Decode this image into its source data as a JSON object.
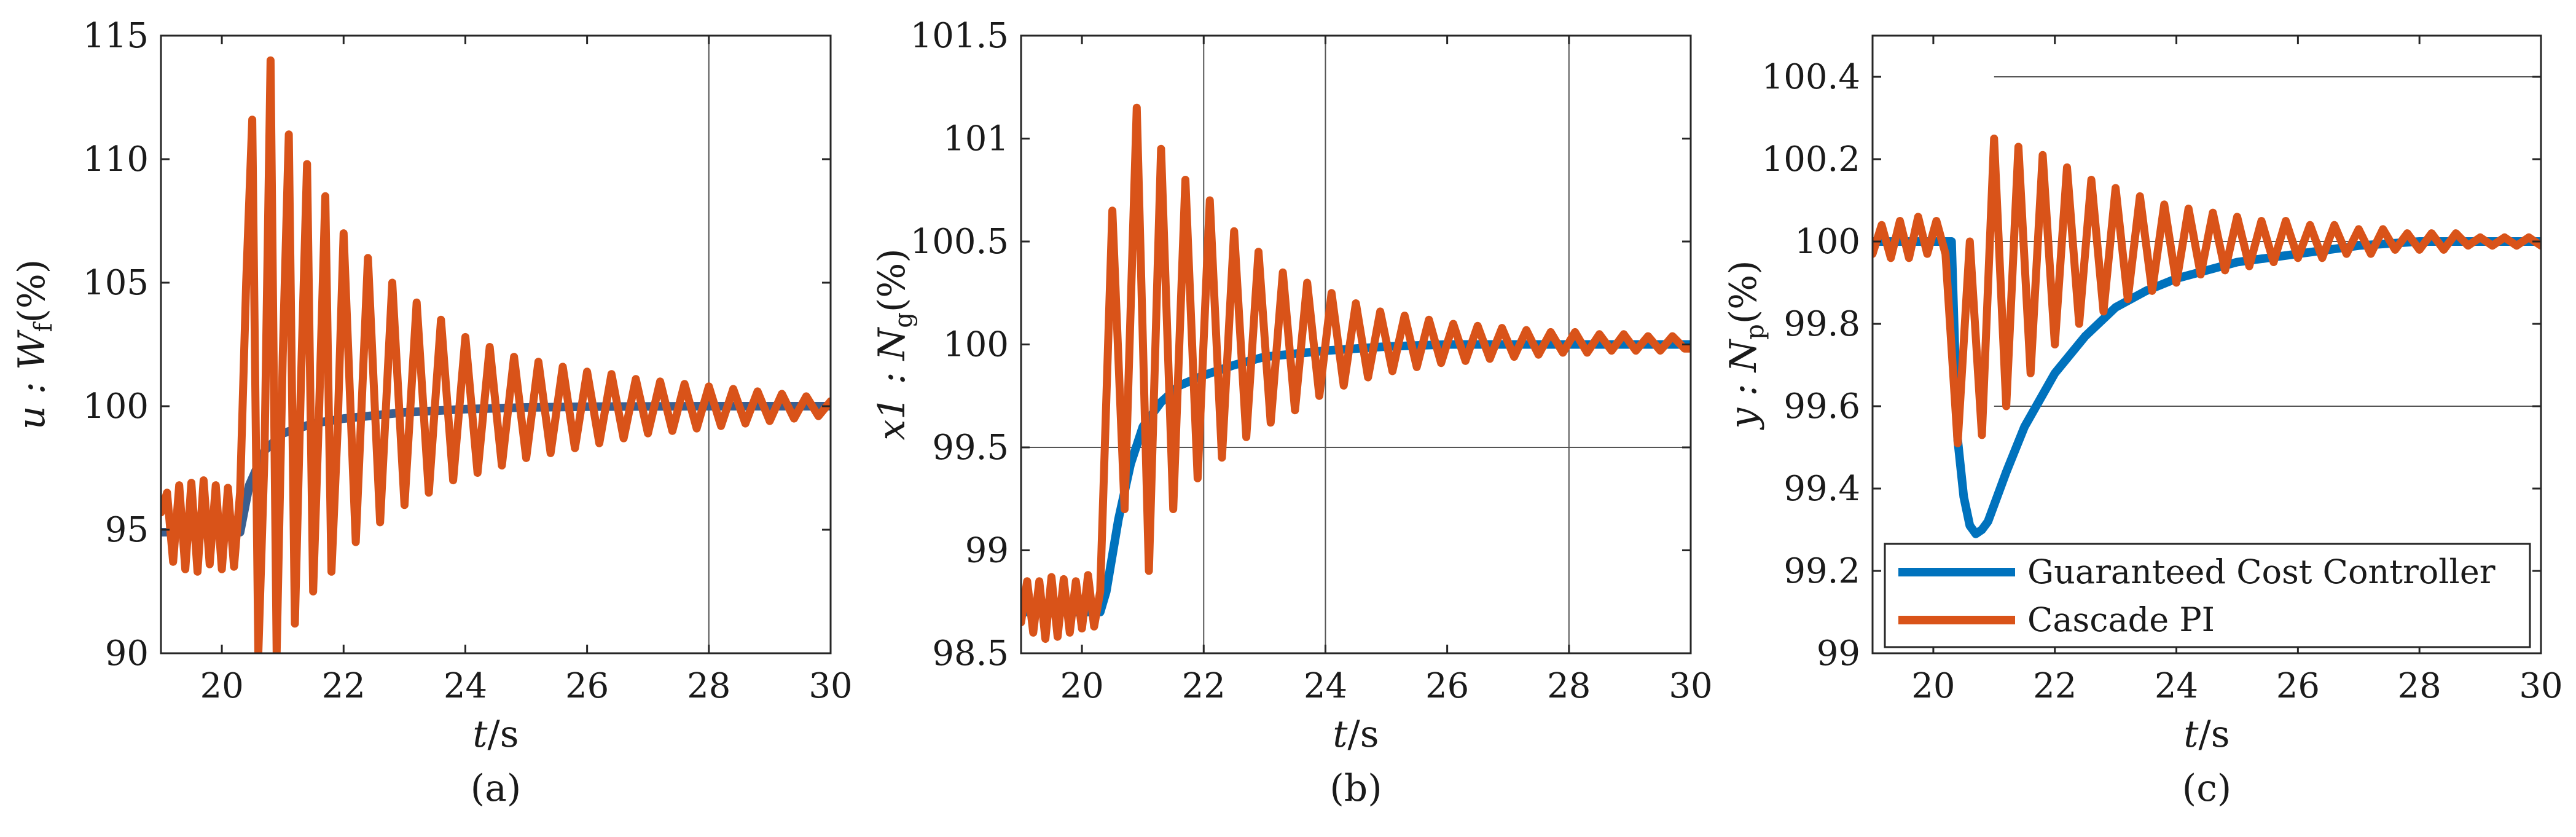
{
  "legend": {
    "entries": [
      {
        "label": "Guaranteed Cost Controller",
        "color": "#0072BD"
      },
      {
        "label": "Cascade PI",
        "color": "#D95319"
      }
    ]
  },
  "chart_data": [
    {
      "type": "line",
      "caption": "(a)",
      "ylabel": "u : W",
      "ylabel_sub": "f",
      "ylabel_unit": "(%)",
      "xlabel": "t",
      "xlabel_unit": "/s",
      "xlim": [
        19,
        30
      ],
      "ylim": [
        90,
        115
      ],
      "xticks": [
        20,
        22,
        24,
        26,
        28,
        30
      ],
      "yticks": [
        90,
        95,
        100,
        105,
        110,
        115
      ],
      "grid_x": [
        28
      ],
      "grid_y": [],
      "series": [
        {
          "name": "Guaranteed Cost Controller",
          "color": "#3a5f8f",
          "x": [
            19.0,
            20.3,
            20.45,
            20.7,
            21.0,
            21.5,
            22.0,
            23.0,
            24.0,
            25.0,
            26.0,
            28.0,
            30.0
          ],
          "y": [
            94.9,
            94.9,
            96.8,
            98.2,
            98.9,
            99.3,
            99.5,
            99.75,
            99.88,
            99.95,
            99.98,
            100.0,
            100.0
          ]
        },
        {
          "name": "Cascade PI",
          "color": "#D95319",
          "x": [
            19.0,
            19.1,
            19.2,
            19.3,
            19.4,
            19.5,
            19.6,
            19.7,
            19.8,
            19.9,
            20.0,
            20.1,
            20.2,
            20.3,
            20.4,
            20.5,
            20.6,
            20.7,
            20.8,
            20.9,
            21.0,
            21.1,
            21.2,
            21.3,
            21.4,
            21.5,
            21.6,
            21.7,
            21.8,
            21.9,
            22.0,
            22.2,
            22.4,
            22.6,
            22.8,
            23.0,
            23.2,
            23.4,
            23.6,
            23.8,
            24.0,
            24.2,
            24.4,
            24.6,
            24.8,
            25.0,
            25.2,
            25.4,
            25.6,
            25.8,
            26.0,
            26.2,
            26.4,
            26.6,
            26.8,
            27.0,
            27.2,
            27.4,
            27.6,
            27.8,
            28.0,
            28.2,
            28.4,
            28.6,
            28.8,
            29.0,
            29.2,
            29.4,
            29.6,
            29.8,
            30.0
          ],
          "y": [
            95.7,
            96.5,
            93.7,
            96.8,
            93.4,
            96.9,
            93.3,
            97.0,
            93.6,
            96.8,
            93.4,
            96.7,
            93.5,
            96.5,
            105.0,
            111.6,
            90.0,
            98.0,
            114.0,
            90.0,
            102.0,
            111.0,
            91.2,
            101.0,
            109.8,
            92.5,
            100.0,
            108.5,
            93.3,
            99.0,
            107.0,
            94.5,
            106.0,
            95.3,
            105.0,
            96.0,
            104.2,
            96.5,
            103.5,
            97.0,
            102.8,
            97.3,
            102.4,
            97.6,
            102.0,
            97.9,
            101.8,
            98.1,
            101.6,
            98.3,
            101.4,
            98.5,
            101.3,
            98.7,
            101.1,
            98.9,
            101.0,
            99.0,
            100.9,
            99.1,
            100.8,
            99.2,
            100.7,
            99.3,
            100.6,
            99.4,
            100.5,
            99.5,
            100.4,
            99.6,
            100.2
          ]
        }
      ]
    },
    {
      "type": "line",
      "caption": "(b)",
      "ylabel": "x1 : N",
      "ylabel_sub": "g",
      "ylabel_unit": "(%)",
      "xlabel": "t",
      "xlabel_unit": "/s",
      "xlim": [
        19,
        30
      ],
      "ylim": [
        98.5,
        101.5
      ],
      "xticks": [
        20,
        22,
        24,
        26,
        28,
        30
      ],
      "yticks": [
        98.5,
        99,
        99.5,
        100,
        100.5,
        101,
        101.5
      ],
      "grid_x": [
        22,
        24,
        28
      ],
      "grid_y": [
        99.5
      ],
      "series": [
        {
          "name": "Guaranteed Cost Controller",
          "color": "#0072BD",
          "x": [
            19.0,
            20.3,
            20.4,
            20.6,
            20.8,
            21.0,
            21.3,
            21.6,
            22.0,
            22.5,
            23.0,
            24.0,
            25.0,
            26.0,
            28.0,
            30.0
          ],
          "y": [
            98.7,
            98.7,
            98.8,
            99.15,
            99.42,
            99.6,
            99.72,
            99.8,
            99.85,
            99.9,
            99.94,
            99.97,
            99.99,
            100.0,
            100.0,
            100.0
          ]
        },
        {
          "name": "Cascade PI",
          "color": "#D95319",
          "x": [
            19.0,
            19.1,
            19.2,
            19.3,
            19.4,
            19.5,
            19.6,
            19.7,
            19.8,
            19.9,
            20.0,
            20.1,
            20.2,
            20.3,
            20.5,
            20.7,
            20.9,
            21.1,
            21.3,
            21.5,
            21.7,
            21.9,
            22.1,
            22.3,
            22.5,
            22.7,
            22.9,
            23.1,
            23.3,
            23.5,
            23.7,
            23.9,
            24.1,
            24.3,
            24.5,
            24.7,
            24.9,
            25.1,
            25.3,
            25.5,
            25.7,
            25.9,
            26.1,
            26.3,
            26.5,
            26.7,
            26.9,
            27.1,
            27.3,
            27.5,
            27.7,
            27.9,
            28.1,
            28.3,
            28.5,
            28.7,
            28.9,
            29.1,
            29.3,
            29.5,
            29.7,
            29.9,
            30.0
          ],
          "y": [
            98.65,
            98.85,
            98.6,
            98.85,
            98.57,
            98.87,
            98.58,
            98.86,
            98.6,
            98.85,
            98.62,
            98.88,
            98.63,
            98.8,
            100.65,
            99.2,
            101.15,
            98.9,
            100.95,
            99.2,
            100.8,
            99.35,
            100.7,
            99.45,
            100.55,
            99.55,
            100.45,
            99.62,
            100.35,
            99.68,
            100.3,
            99.75,
            100.25,
            99.8,
            100.2,
            99.84,
            100.16,
            99.87,
            100.14,
            99.89,
            100.12,
            99.91,
            100.1,
            99.92,
            100.09,
            99.93,
            100.08,
            99.94,
            100.07,
            99.95,
            100.06,
            99.96,
            100.06,
            99.96,
            100.05,
            99.97,
            100.05,
            99.97,
            100.04,
            99.97,
            100.04,
            99.98,
            99.98
          ]
        }
      ]
    },
    {
      "type": "line",
      "caption": "(c)",
      "ylabel": "y : N",
      "ylabel_sub": "p",
      "ylabel_unit": "(%)",
      "xlabel": "t",
      "xlabel_unit": "/s",
      "xlim": [
        19,
        30
      ],
      "ylim": [
        99,
        100.5
      ],
      "xticks": [
        20,
        22,
        24,
        26,
        28,
        30
      ],
      "yticks": [
        99,
        99.2,
        99.4,
        99.6,
        99.8,
        100,
        100.2,
        100.4
      ],
      "grid_x": [],
      "grid_y": [
        99.6,
        100.0,
        100.4
      ],
      "grid_y_from": 21,
      "series": [
        {
          "name": "Guaranteed Cost Controller",
          "color": "#0072BD",
          "x": [
            19.0,
            20.3,
            20.4,
            20.5,
            20.6,
            20.7,
            20.8,
            20.9,
            21.0,
            21.2,
            21.5,
            22.0,
            22.5,
            23.0,
            23.5,
            24.0,
            25.0,
            26.0,
            27.0,
            28.0,
            30.0
          ],
          "y": [
            100.0,
            100.0,
            99.52,
            99.38,
            99.31,
            99.29,
            99.3,
            99.32,
            99.36,
            99.44,
            99.55,
            99.68,
            99.77,
            99.84,
            99.88,
            99.91,
            99.95,
            99.97,
            99.99,
            100.0,
            100.0
          ]
        },
        {
          "name": "Cascade PI",
          "color": "#D95319",
          "x": [
            19.0,
            19.15,
            19.3,
            19.45,
            19.6,
            19.75,
            19.9,
            20.05,
            20.2,
            20.4,
            20.6,
            20.8,
            21.0,
            21.2,
            21.4,
            21.6,
            21.8,
            22.0,
            22.2,
            22.4,
            22.6,
            22.8,
            23.0,
            23.2,
            23.4,
            23.6,
            23.8,
            24.0,
            24.2,
            24.4,
            24.6,
            24.8,
            25.0,
            25.2,
            25.4,
            25.6,
            25.8,
            26.0,
            26.2,
            26.4,
            26.6,
            26.8,
            27.0,
            27.2,
            27.4,
            27.6,
            27.8,
            28.0,
            28.2,
            28.4,
            28.6,
            28.8,
            29.0,
            29.2,
            29.4,
            29.6,
            29.8,
            30.0
          ],
          "y": [
            99.97,
            100.04,
            99.96,
            100.05,
            99.96,
            100.06,
            99.97,
            100.05,
            99.97,
            99.51,
            100.0,
            99.53,
            100.25,
            99.6,
            100.23,
            99.68,
            100.21,
            99.75,
            100.18,
            99.8,
            100.15,
            99.83,
            100.13,
            99.86,
            100.11,
            99.88,
            100.09,
            99.9,
            100.08,
            99.92,
            100.07,
            99.93,
            100.06,
            99.94,
            100.05,
            99.95,
            100.05,
            99.96,
            100.04,
            99.96,
            100.04,
            99.97,
            100.03,
            99.97,
            100.03,
            99.98,
            100.02,
            99.98,
            100.02,
            99.98,
            100.02,
            99.99,
            100.01,
            99.99,
            100.01,
            99.99,
            100.01,
            99.99
          ]
        }
      ]
    }
  ]
}
